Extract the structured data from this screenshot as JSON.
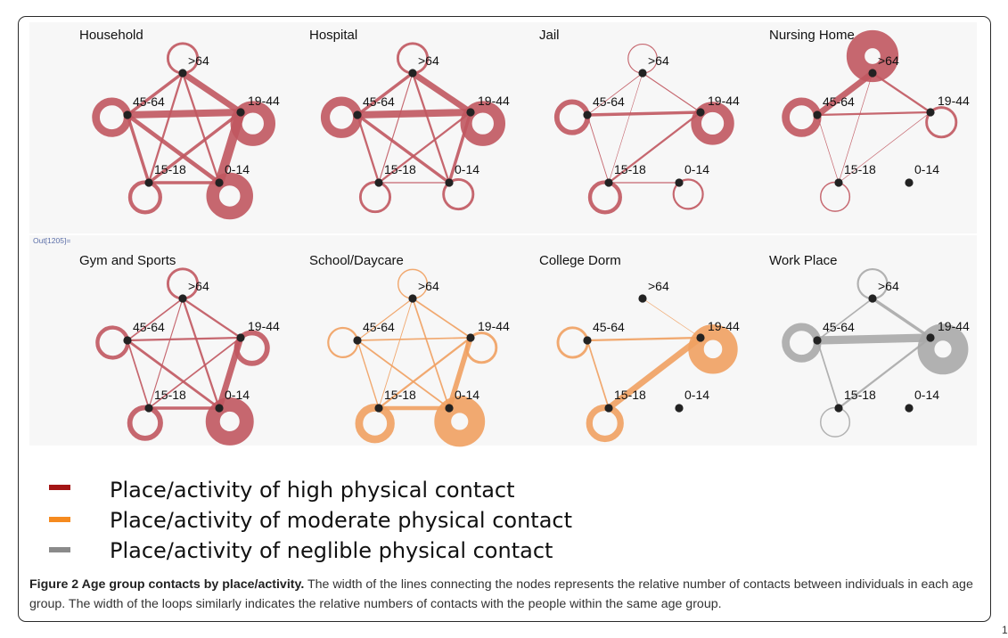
{
  "figure": {
    "out_label": "Out[1205]=",
    "node_labels": {
      ">64": ">64",
      "19-44": "19-44",
      "0-14": "0-14",
      "15-18": "15-18",
      "45-64": "45-64"
    },
    "colors": {
      "high": "#c0575f",
      "moderate": "#f0a060",
      "neglible": "#a8a8a8",
      "node": "#222222",
      "panel_bg": "#f7f7f7"
    },
    "panels": [
      {
        "title": "Household",
        "color": "high",
        "loops": {
          ">64": 2,
          "19-44": 9,
          "0-14": 10,
          "15-18": 3,
          "45-64": 6
        },
        "edges": [
          [
            ">64",
            "19-44",
            6
          ],
          [
            ">64",
            "45-64",
            3
          ],
          [
            ">64",
            "0-14",
            2
          ],
          [
            ">64",
            "15-18",
            2
          ],
          [
            "19-44",
            "45-64",
            7
          ],
          [
            "19-44",
            "0-14",
            9
          ],
          [
            "19-44",
            "15-18",
            3
          ],
          [
            "45-64",
            "0-14",
            4
          ],
          [
            "45-64",
            "15-18",
            3
          ],
          [
            "0-14",
            "15-18",
            3
          ]
        ]
      },
      {
        "title": "Hospital",
        "color": "high",
        "loops": {
          ">64": 2,
          "19-44": 9,
          "0-14": 2,
          "15-18": 2,
          "45-64": 7
        },
        "edges": [
          [
            ">64",
            "19-44",
            6
          ],
          [
            ">64",
            "45-64",
            3
          ],
          [
            ">64",
            "0-14",
            2
          ],
          [
            ">64",
            "15-18",
            1
          ],
          [
            "19-44",
            "45-64",
            7
          ],
          [
            "19-44",
            "0-14",
            3
          ],
          [
            "19-44",
            "15-18",
            2
          ],
          [
            "45-64",
            "0-14",
            3
          ],
          [
            "45-64",
            "15-18",
            2
          ],
          [
            "0-14",
            "15-18",
            1
          ]
        ]
      },
      {
        "title": "Jail",
        "color": "high",
        "loops": {
          ">64": 0.8,
          "19-44": 8,
          "0-14": 1.5,
          "15-18": 3,
          "45-64": 4
        },
        "edges": [
          [
            ">64",
            "19-44",
            1
          ],
          [
            ">64",
            "45-64",
            0.7
          ],
          [
            ">64",
            "15-18",
            0.5
          ],
          [
            "19-44",
            "45-64",
            3
          ],
          [
            "19-44",
            "15-18",
            2
          ],
          [
            "45-64",
            "15-18",
            0.8
          ],
          [
            "0-14",
            "15-18",
            1
          ]
        ]
      },
      {
        "title": "Nursing Home",
        "color": "high",
        "loops": {
          ">64": 14,
          "19-44": 2,
          "15-18": 1,
          "45-64": 6
        },
        "edges": [
          [
            ">64",
            "19-44",
            2
          ],
          [
            ">64",
            "45-64",
            6
          ],
          [
            ">64",
            "15-18",
            0.6
          ],
          [
            "19-44",
            "45-64",
            2
          ],
          [
            "19-44",
            "15-18",
            0.6
          ],
          [
            "45-64",
            "15-18",
            0.6
          ]
        ]
      },
      {
        "title": "Gym and Sports",
        "color": "high",
        "loops": {
          ">64": 2,
          "19-44": 4,
          "0-14": 11,
          "15-18": 4,
          "45-64": 3
        },
        "edges": [
          [
            ">64",
            "19-44",
            2
          ],
          [
            ">64",
            "45-64",
            1.5
          ],
          [
            ">64",
            "0-14",
            2
          ],
          [
            ">64",
            "15-18",
            1
          ],
          [
            "19-44",
            "45-64",
            2
          ],
          [
            "19-44",
            "0-14",
            6
          ],
          [
            "19-44",
            "15-18",
            1.5
          ],
          [
            "45-64",
            "0-14",
            2.5
          ],
          [
            "45-64",
            "15-18",
            1.5
          ],
          [
            "0-14",
            "15-18",
            3
          ]
        ]
      },
      {
        "title": "School/Daycare",
        "color": "moderate",
        "loops": {
          ">64": 1,
          "19-44": 2,
          "0-14": 13,
          "15-18": 6,
          "45-64": 1.5
        },
        "edges": [
          [
            ">64",
            "19-44",
            1.5
          ],
          [
            ">64",
            "45-64",
            1
          ],
          [
            ">64",
            "0-14",
            1.5
          ],
          [
            ">64",
            "15-18",
            0.8
          ],
          [
            "19-44",
            "45-64",
            1.5
          ],
          [
            "19-44",
            "0-14",
            5
          ],
          [
            "19-44",
            "15-18",
            2
          ],
          [
            "45-64",
            "0-14",
            1.5
          ],
          [
            "45-64",
            "15-18",
            1.2
          ],
          [
            "0-14",
            "15-18",
            4
          ]
        ]
      },
      {
        "title": "College Dorm",
        "color": "moderate",
        "loops": {
          ">64": 0,
          "19-44": 12,
          "15-18": 5,
          "45-64": 2
        },
        "edges": [
          [
            ">64",
            "19-44",
            0.6
          ],
          [
            "19-44",
            "45-64",
            2
          ],
          [
            "19-44",
            "15-18",
            6
          ],
          [
            "45-64",
            "15-18",
            1.5
          ]
        ]
      },
      {
        "title": "Work Place",
        "color": "neglible",
        "loops": {
          ">64": 1.5,
          "19-44": 13,
          "15-18": 1,
          "45-64": 6
        },
        "edges": [
          [
            ">64",
            "19-44",
            3
          ],
          [
            ">64",
            "45-64",
            1.5
          ],
          [
            "19-44",
            "45-64",
            8
          ],
          [
            "19-44",
            "15-18",
            2
          ],
          [
            "45-64",
            "15-18",
            1.5
          ]
        ]
      }
    ]
  },
  "legend": [
    {
      "label": "Place/activity of high physical contact",
      "color": "#a31515"
    },
    {
      "label": "Place/activity of moderate physical contact",
      "color": "#f58a1f"
    },
    {
      "label": "Place/activity of neglible physical contact",
      "color": "#8a8a8a"
    }
  ],
  "caption": {
    "title": "Figure 2 Age group contacts by place/activity.",
    "text": "The width of the lines connecting the nodes represents the relative number of contacts between individuals in each age group. The width of the loops similarly indicates the relative numbers of contacts with the people within the same age group."
  },
  "corner_mark": "1"
}
